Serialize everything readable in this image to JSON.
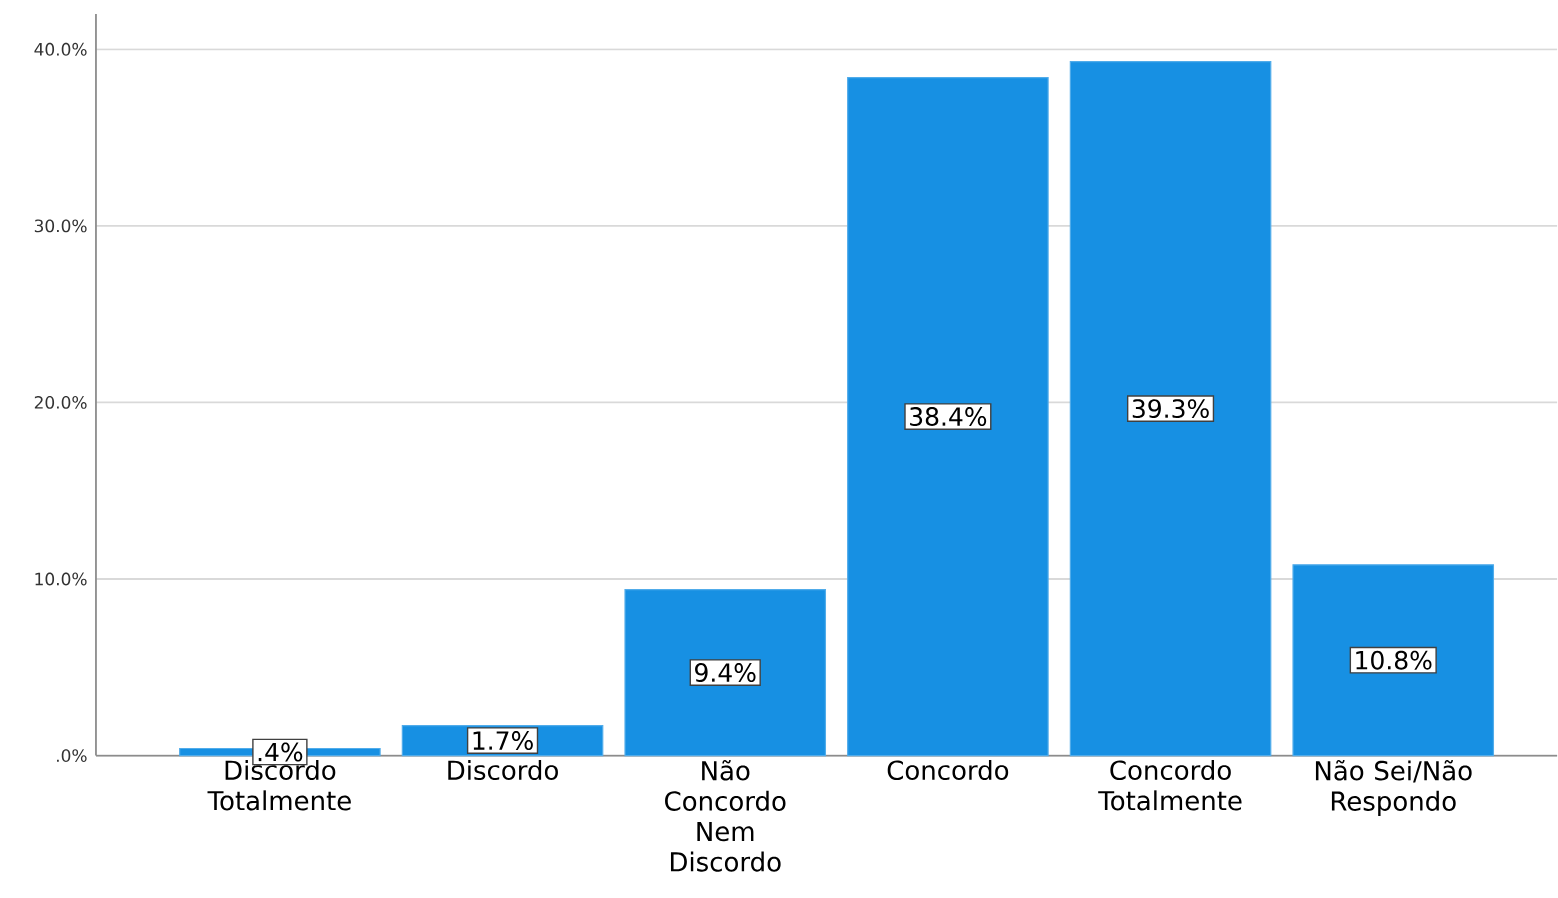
{
  "chart_data": {
    "type": "bar",
    "categories": [
      "Discordo Totalmente",
      "Discordo",
      "Não Concordo Nem Discordo",
      "Concordo",
      "Concordo Totalmente",
      "Não Sei/Não Respondo"
    ],
    "values": [
      0.4,
      1.7,
      9.4,
      38.4,
      39.3,
      10.8
    ],
    "value_labels": [
      ".4%",
      "1.7%",
      "9.4%",
      "38.4%",
      "39.3%",
      "10.8%"
    ],
    "color": "#1790e3",
    "ylim": [
      0,
      42
    ],
    "yticks": [
      {
        "value": 0,
        "label": ".0%"
      },
      {
        "value": 10,
        "label": "10.0%"
      },
      {
        "value": 20,
        "label": "20.0%"
      },
      {
        "value": 30,
        "label": "30.0%"
      },
      {
        "value": 40,
        "label": "40.0%"
      }
    ],
    "grid": "y"
  }
}
